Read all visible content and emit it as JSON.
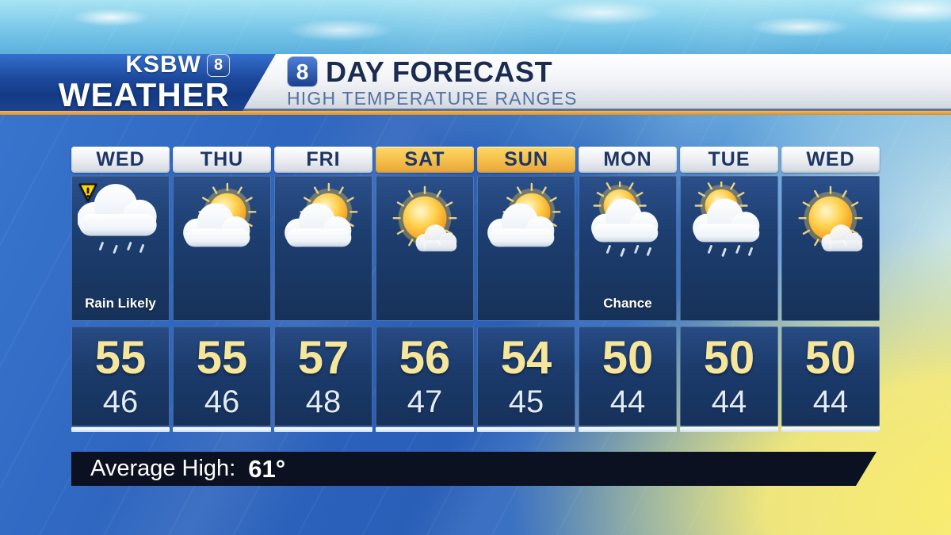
{
  "brand": {
    "station": "KSBW",
    "channel": "8",
    "department": "WEATHER"
  },
  "header": {
    "channel": "8",
    "title": "DAY FORECAST",
    "subtitle": "HIGH TEMPERATURE RANGES"
  },
  "forecast": {
    "days": [
      {
        "label": "WED",
        "icon": "rain-cloud",
        "alert": true,
        "condition": "Rain Likely",
        "high": "55",
        "low": "46",
        "weekend": false
      },
      {
        "label": "THU",
        "icon": "partly-cloudy",
        "alert": false,
        "condition": "",
        "high": "55",
        "low": "46",
        "weekend": false
      },
      {
        "label": "FRI",
        "icon": "partly-cloudy",
        "alert": false,
        "condition": "",
        "high": "57",
        "low": "48",
        "weekend": false
      },
      {
        "label": "SAT",
        "icon": "mostly-sunny",
        "alert": false,
        "condition": "",
        "high": "56",
        "low": "47",
        "weekend": true
      },
      {
        "label": "SUN",
        "icon": "partly-cloudy",
        "alert": false,
        "condition": "",
        "high": "54",
        "low": "45",
        "weekend": true
      },
      {
        "label": "MON",
        "icon": "sun-cloud-rain",
        "alert": false,
        "condition": "Chance",
        "high": "50",
        "low": "44",
        "weekend": false
      },
      {
        "label": "TUE",
        "icon": "sun-cloud-rain",
        "alert": false,
        "condition": "",
        "high": "50",
        "low": "44",
        "weekend": false
      },
      {
        "label": "WED",
        "icon": "mostly-sunny",
        "alert": false,
        "condition": "",
        "high": "50",
        "low": "44",
        "weekend": false
      }
    ]
  },
  "footer": {
    "label": "Average High:",
    "value": "61°"
  },
  "colors": {
    "accent_gold": "#e8a33d",
    "weekend_header_gold": "#f5bd4a",
    "panel_navy": "#1d3e70",
    "high_temp_cream": "#f6e69c",
    "low_temp_white": "#e2ecf7",
    "title_navy": "#1b2c50",
    "subtitle_blue": "#54719f"
  },
  "chart_data": {
    "type": "table",
    "title": "8 DAY FORECAST — HIGH TEMPERATURE RANGES",
    "categories": [
      "WED",
      "THU",
      "FRI",
      "SAT",
      "SUN",
      "MON",
      "TUE",
      "WED"
    ],
    "series": [
      {
        "name": "High",
        "values": [
          55,
          55,
          57,
          56,
          54,
          50,
          50,
          50
        ]
      },
      {
        "name": "Low",
        "values": [
          46,
          46,
          48,
          47,
          45,
          44,
          44,
          44
        ]
      }
    ],
    "conditions": [
      "Rain Likely",
      "",
      "",
      "",
      "",
      "Chance",
      "",
      ""
    ],
    "average_high": 61
  }
}
